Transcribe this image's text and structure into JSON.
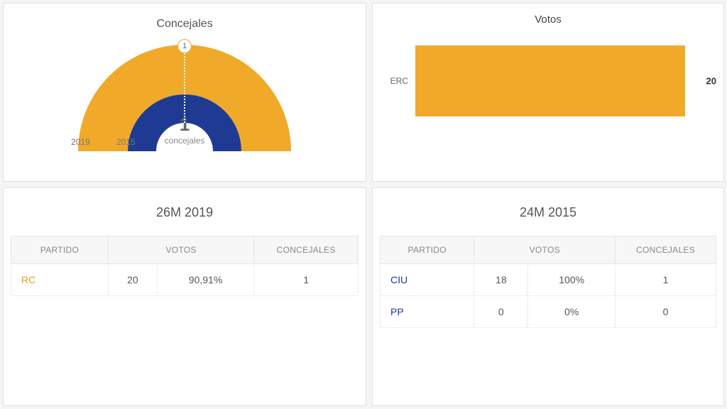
{
  "concejales": {
    "title": "Concejales",
    "center_number": "1",
    "center_label": "concejales",
    "badge": "1",
    "outer": {
      "year": "2019",
      "color": "#f0a929"
    },
    "inner": {
      "year": "2015",
      "color": "#1f3a93"
    },
    "years_left_offsets": {
      "outer": 20,
      "inner": 84
    },
    "background": "#ffffff",
    "title_fontsize": 16
  },
  "votos": {
    "title": "Votos",
    "bar": {
      "party": "ERC",
      "value": "20",
      "fraction": 0.98,
      "color": "#f0a929"
    },
    "background": "#ffffff",
    "title_fontsize": 15
  },
  "table2019": {
    "title": "26M 2019",
    "columns": [
      "PARTIDO",
      "VOTOS",
      "CONCEJALES"
    ],
    "rows": [
      {
        "party": "RC",
        "party_color": "#e89a2a",
        "votes": "20",
        "pct": "90,91%",
        "seats": "1"
      }
    ]
  },
  "table2015": {
    "title": "24M 2015",
    "columns": [
      "PARTIDO",
      "VOTOS",
      "CONCEJALES"
    ],
    "rows": [
      {
        "party": "CIU",
        "party_color": "#1f3a93",
        "votes": "18",
        "pct": "100%",
        "seats": "1"
      },
      {
        "party": "PP",
        "party_color": "#1f3a93",
        "votes": "0",
        "pct": "0%",
        "seats": "0"
      }
    ]
  },
  "style": {
    "page_bg": "#f5f5f5",
    "panel_border": "#e0e0e0",
    "th_bg": "#f7f7f7",
    "th_color": "#888888",
    "td_border": "#eeeeee",
    "text_color": "#555555"
  }
}
